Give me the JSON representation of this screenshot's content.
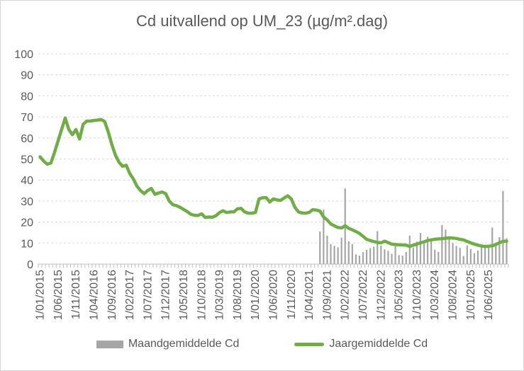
{
  "chart": {
    "title": "Cd uitvallend op UM_23 (µg/m².dag)"
  },
  "legend": {
    "bar_label": "Maandgemiddelde Cd",
    "line_label": "Jaargemiddelde Cd"
  },
  "colors": {
    "line_green": "#70ad47",
    "bar_gray": "#a6a6a6",
    "text_gray": "#595959",
    "gridline": "#d9d9d9",
    "axis": "#bfbfbf"
  },
  "chart_data": {
    "type": "combo",
    "title": "Cd uitvallend op UM_23 (µg/m².dag)",
    "xlabel": "",
    "ylabel": "",
    "ylim": [
      0,
      100
    ],
    "yticks": [
      0,
      10,
      20,
      30,
      40,
      50,
      60,
      70,
      80,
      90,
      100
    ],
    "grid": "horizontal-dashed",
    "legend_position": "bottom",
    "x_frequency": "monthly",
    "x_start": "1/01/2015",
    "n_months": 131,
    "xtick_every": 5,
    "xtick_labels": [
      "1/01/2015",
      "1/06/2015",
      "1/11/2015",
      "1/04/2016",
      "1/09/2016",
      "1/02/2017",
      "1/07/2017",
      "1/12/2017",
      "1/05/2018",
      "1/10/2018",
      "1/03/2019",
      "1/08/2019",
      "1/01/2020",
      "1/06/2020",
      "1/11/2020",
      "1/04/2021",
      "1/09/2021",
      "1/02/2022",
      "1/07/2022",
      "1/12/2022",
      "1/05/2023",
      "1/10/2023",
      "1/03/2024",
      "1/08/2024",
      "1/01/2025",
      "1/06/2025"
    ],
    "series": [
      {
        "name": "Maandgemiddelde Cd",
        "type": "bar",
        "color": "#a6a6a6",
        "start_index": 78,
        "start_label": "1/07/2021",
        "values": [
          15.5,
          26,
          13.5,
          9.5,
          8.7,
          8,
          12.6,
          36,
          10.8,
          9.5,
          4.6,
          4,
          5.7,
          6.8,
          7.6,
          8.3,
          15.7,
          8.8,
          7,
          6.3,
          4.9,
          8.6,
          4.3,
          4,
          5.8,
          13.5,
          7.9,
          10.7,
          14.8,
          10.1,
          13,
          11.9,
          6.9,
          5.8,
          18.6,
          16.4,
          11.9,
          10,
          8.6,
          7.8,
          3.8,
          8.8,
          7.2,
          5.2,
          6.4,
          8.4,
          9.2,
          8.6,
          17.4,
          9.7,
          12.8,
          34.8,
          12.3
        ]
      },
      {
        "name": "Jaargemiddelde Cd",
        "type": "line",
        "color": "#70ad47",
        "start_index": 0,
        "start_label": "1/01/2015",
        "values": [
          51,
          49,
          47.5,
          48,
          53,
          58.5,
          64,
          69.5,
          64,
          61.5,
          64,
          59.5,
          66.5,
          68,
          68,
          68.3,
          68.5,
          68.8,
          67.8,
          62.8,
          56.8,
          51.8,
          48.4,
          46.5,
          47,
          43,
          40.5,
          37,
          35,
          33.5,
          35,
          36,
          33.2,
          33.8,
          34.3,
          33.5,
          30,
          28.2,
          27.8,
          27,
          26,
          25,
          23.7,
          23.2,
          23.1,
          23.9,
          22.2,
          22.4,
          22.3,
          23,
          24.5,
          25.4,
          24.5,
          24.8,
          24.8,
          26.3,
          26.5,
          24.8,
          24.2,
          24.2,
          24.5,
          31,
          31.5,
          31.6,
          29.5,
          31,
          30.5,
          30.3,
          31.4,
          32.5,
          31,
          27,
          24.8,
          24.3,
          24.2,
          24.6,
          25.9,
          25.7,
          25.2,
          22.4,
          21,
          19.1,
          18.2,
          17.4,
          17.2,
          18.2,
          17,
          16.3,
          15.5,
          14.6,
          13.2,
          11.8,
          11.2,
          10.7,
          10.3,
          10.1,
          10.9,
          10.2,
          9.5,
          9.3,
          9.2,
          9.1,
          9,
          8.4,
          9,
          9.5,
          10.1,
          10.6,
          11.2,
          11.5,
          11.8,
          12,
          12.1,
          12.3,
          12.5,
          12.4,
          12.2,
          11.8,
          11.5,
          10.8,
          10.1,
          9.5,
          9,
          8.6,
          8.4,
          8.5,
          8.7,
          9.3,
          10.2,
          10.8,
          10.9
        ]
      }
    ]
  }
}
